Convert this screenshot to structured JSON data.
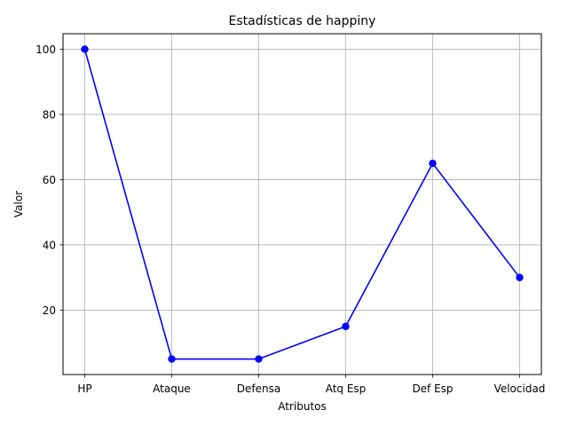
{
  "chart_data": {
    "type": "line",
    "title": "Estadísticas de happiny",
    "xlabel": "Atributos",
    "ylabel": "Valor",
    "categories": [
      "HP",
      "Ataque",
      "Defensa",
      "Atq Esp",
      "Def Esp",
      "Velocidad"
    ],
    "series": [
      {
        "values": [
          100,
          5,
          5,
          15,
          65,
          30
        ],
        "color": "#0000ff",
        "marker": "circle"
      }
    ],
    "ylim": [
      0.25,
      104.75
    ],
    "yticks": [
      20,
      40,
      60,
      80,
      100
    ],
    "grid": true
  }
}
